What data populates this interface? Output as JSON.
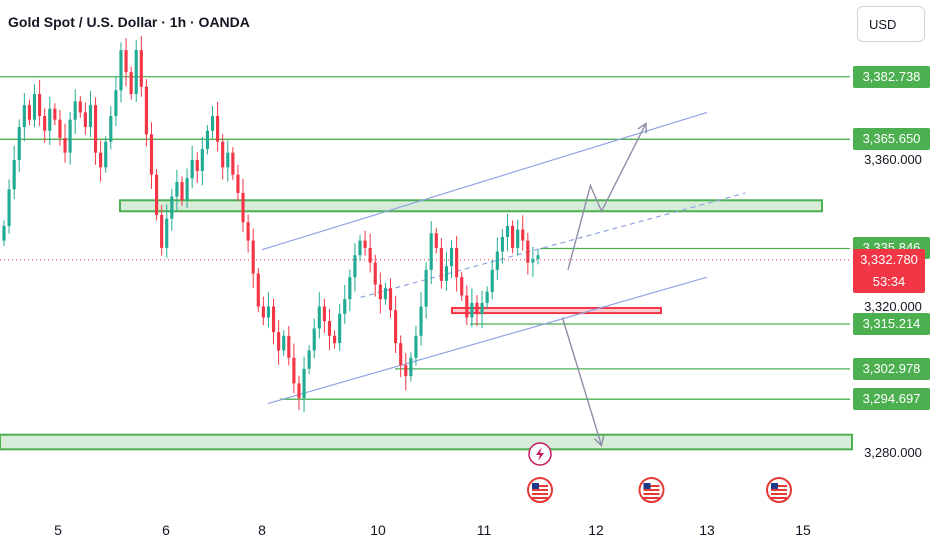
{
  "header": {
    "title": "Gold Spot / U.S. Dollar · 1h · OANDA",
    "currency": "USD"
  },
  "colors": {
    "up": "#22ab94",
    "down": "#f23645",
    "zone": "#4caf50",
    "channel": "#90a4e4",
    "arrow": "#8e8ea8"
  },
  "chart_data": {
    "type": "candlestick",
    "symbol": "Gold Spot / U.S. Dollar",
    "timeframe": "1h",
    "source": "OANDA",
    "y_range": [
      3270,
      3395
    ],
    "x_tick_labels": [
      {
        "label": "5",
        "x": 5
      },
      {
        "label": "6",
        "x": 6
      },
      {
        "label": "8",
        "x": 8
      },
      {
        "label": "10",
        "x": 10
      },
      {
        "label": "11",
        "x": 11
      },
      {
        "label": "12",
        "x": 12
      },
      {
        "label": "13",
        "x": 13
      },
      {
        "label": "15",
        "x": 15
      }
    ],
    "price_levels": [
      {
        "value": 3382.738,
        "label": "3,382.738",
        "style": "tag"
      },
      {
        "value": 3365.65,
        "label": "3,365.650",
        "style": "tag"
      },
      {
        "value": 3360.0,
        "label": "3,360.000",
        "style": "plain"
      },
      {
        "value": 3335.846,
        "label": "3,335.846",
        "style": "tag"
      },
      {
        "value": 3320.0,
        "label": "3,320.000",
        "style": "plain"
      },
      {
        "value": 3315.214,
        "label": "3,315.214",
        "style": "tag"
      },
      {
        "value": 3302.978,
        "label": "3,302.978",
        "style": "tag"
      },
      {
        "value": 3294.697,
        "label": "3,294.697",
        "style": "tag"
      },
      {
        "value": 3280.0,
        "label": "3,280.000",
        "style": "plain"
      }
    ],
    "current_price": {
      "value": 3332.78,
      "label": "3,332.780",
      "countdown": "53:34"
    },
    "candles_close": [
      3342,
      3352,
      3360,
      3369,
      3375,
      3371,
      3378,
      3372,
      3368,
      3374,
      3371,
      3366,
      3362,
      3371,
      3376,
      3373,
      3369,
      3375,
      3362,
      3358,
      3365,
      3372,
      3379,
      3390,
      3384,
      3378,
      3390,
      3380,
      3367,
      3356,
      3345,
      3336,
      3344,
      3350,
      3354,
      3349,
      3355,
      3360,
      3357,
      3363,
      3368,
      3372,
      3365,
      3358,
      3362,
      3356,
      3351,
      3343,
      3338,
      3329,
      3320,
      3317,
      3320,
      3313,
      3308,
      3312,
      3306,
      3299,
      3295,
      3303,
      3308,
      3314,
      3320,
      3316,
      3312,
      3310,
      3318,
      3322,
      3328,
      3334,
      3338,
      3336,
      3332,
      3326,
      3322,
      3325,
      3319,
      3310,
      3304,
      3301,
      3306,
      3312,
      3320,
      3330,
      3340,
      3336,
      3327,
      3331,
      3336,
      3328,
      3323,
      3317,
      3321,
      3318,
      3321,
      3324,
      3330,
      3335,
      3339,
      3342,
      3336,
      3341,
      3338,
      3332,
      3333,
      3334
    ],
    "resistance_zone": {
      "low": 3346,
      "high": 3349
    },
    "support_zone": {
      "low": 3281,
      "high": 3285
    },
    "small_support_zone": {
      "low": 3318.2,
      "high": 3319.6
    },
    "channel": {
      "upper": [
        {
          "x": 8.0,
          "y": 3335.5
        },
        {
          "x": 13.0,
          "y": 3373
        }
      ],
      "lower": [
        {
          "x": 8.1,
          "y": 3293.5
        },
        {
          "x": 13.0,
          "y": 3328
        }
      ],
      "mid": [
        {
          "x": 9.7,
          "y": 3322.5
        },
        {
          "x": 13.8,
          "y": 3351
        }
      ]
    },
    "projections": [
      {
        "name": "bullish",
        "points": [
          {
            "x": 11.75,
            "y": 3330
          },
          {
            "x": 11.95,
            "y": 3353
          },
          {
            "x": 12.05,
            "y": 3346
          },
          {
            "x": 12.45,
            "y": 3370
          }
        ]
      },
      {
        "name": "bearish",
        "points": [
          {
            "x": 11.7,
            "y": 3317
          },
          {
            "x": 12.05,
            "y": 3282
          }
        ]
      }
    ],
    "event_markers": [
      {
        "x": 11.5,
        "icon": "lightning-icon",
        "row": 1
      },
      {
        "x": 11.5,
        "icon": "us-flag-icon",
        "row": 2
      },
      {
        "x": 12.5,
        "icon": "us-flag-icon",
        "row": 2
      },
      {
        "x": 14.5,
        "icon": "us-flag-icon",
        "row": 2
      }
    ]
  }
}
